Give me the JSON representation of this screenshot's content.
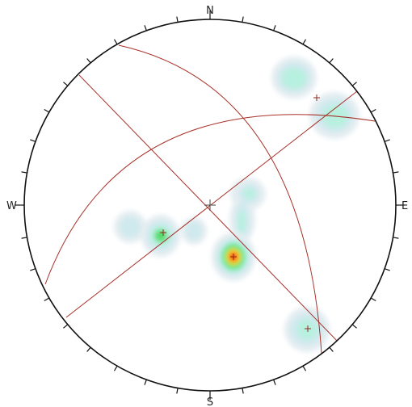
{
  "diagram": {
    "type": "stereonet",
    "labels": {
      "north": "N",
      "east": "E",
      "south": "S",
      "west": "W"
    },
    "colors": {
      "outline": "#111111",
      "great_circle": "#a8322a",
      "pole_marker": "#8b2a20",
      "center_cross": "#444444",
      "contour_scale": [
        "#e4edf1",
        "#cfe9ee",
        "#b8f0df",
        "#96eec8",
        "#57dd6e",
        "#d8ec45",
        "#ffb000",
        "#ff4a1a",
        "#ff0000"
      ]
    },
    "tick_count": 36
  }
}
